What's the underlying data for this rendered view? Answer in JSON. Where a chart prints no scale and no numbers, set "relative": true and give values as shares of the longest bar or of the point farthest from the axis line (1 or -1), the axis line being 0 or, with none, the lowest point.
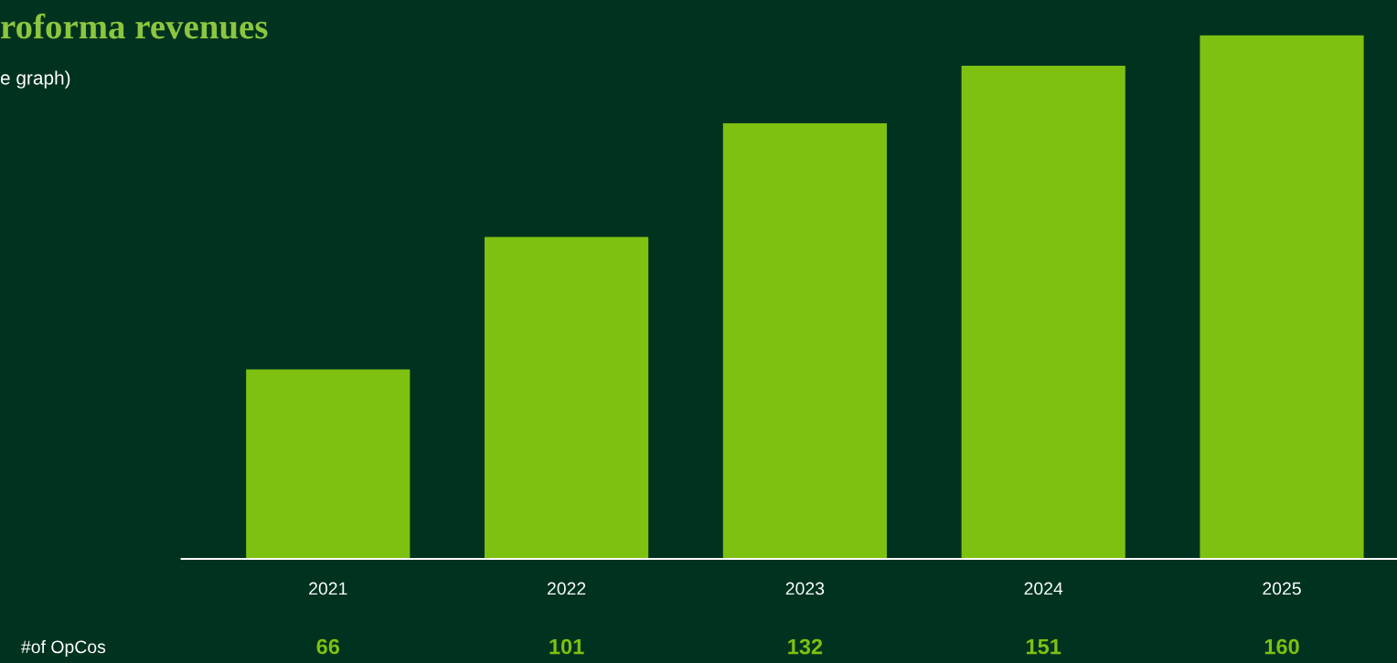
{
  "chart_data": {
    "type": "bar",
    "title": "roforma revenues",
    "subtitle": "e graph)",
    "categories": [
      "2021",
      "2022",
      "2023",
      "2024",
      "2025"
    ],
    "values": [
      0.362,
      0.615,
      0.832,
      0.942,
      1.0
    ],
    "color": "#7fc111",
    "relative": true,
    "grid": false,
    "legend": false,
    "annotations": [
      "#of OpCos",
      "66",
      "101",
      "132",
      "151",
      "160"
    ]
  }
}
